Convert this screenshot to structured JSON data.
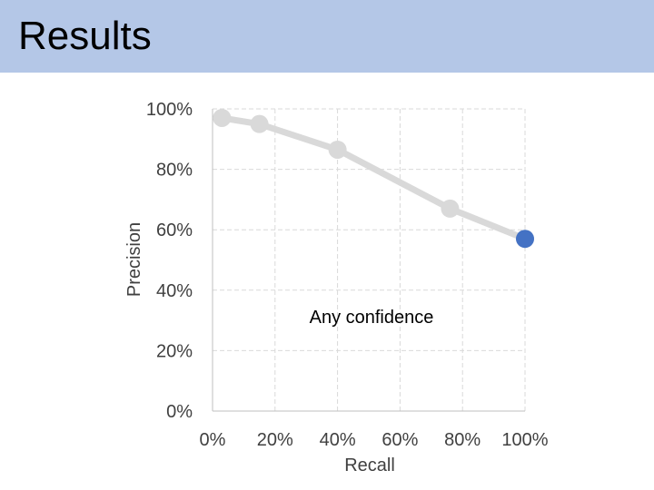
{
  "slide": {
    "title": "Results"
  },
  "chart_data": {
    "type": "line",
    "title": "",
    "xlabel": "Recall",
    "ylabel": "Precision",
    "xlim": [
      0,
      100
    ],
    "ylim": [
      0,
      100
    ],
    "x_tick_labels": [
      "0%",
      "20%",
      "40%",
      "60%",
      "80%",
      "100%"
    ],
    "y_tick_labels": [
      "0%",
      "20%",
      "40%",
      "60%",
      "80%",
      "100%"
    ],
    "grid": true,
    "series": [
      {
        "x": [
          3,
          15,
          40,
          76,
          100
        ],
        "y": [
          97,
          95,
          86.5,
          67,
          57
        ],
        "color": "#d9d9d9"
      }
    ],
    "highlight_point": {
      "x": 100,
      "y": 57,
      "color": "#4472c4"
    },
    "annotation": "Any confidence"
  }
}
